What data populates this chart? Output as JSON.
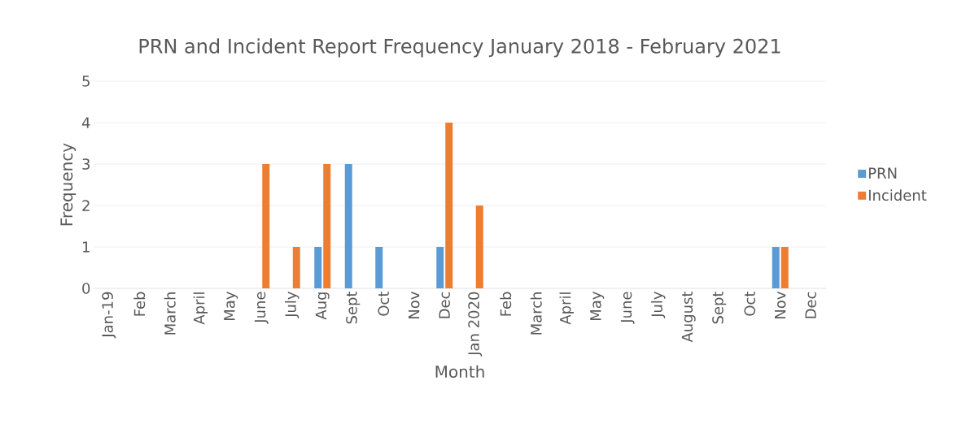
{
  "chart_data": {
    "type": "bar",
    "title": "PRN and Incident Report Frequency January 2018 - February 2021",
    "xlabel": "Month",
    "ylabel": "Frequency",
    "categories": [
      "Jan-19",
      "Feb",
      "March",
      "April",
      "May",
      "June",
      "July",
      "Aug",
      "Sept",
      "Oct",
      "Nov",
      "Dec",
      "Jan 2020",
      "Feb",
      "March",
      "April",
      "May",
      "June",
      "July",
      "August",
      "Sept",
      "Oct",
      "Nov",
      "Dec"
    ],
    "series": [
      {
        "name": "PRN",
        "color": "#5b9bd5",
        "values": [
          0,
          0,
          0,
          0,
          0,
          0,
          0,
          1,
          3,
          1,
          0,
          1,
          0,
          0,
          0,
          0,
          0,
          0,
          0,
          0,
          0,
          0,
          1,
          0
        ]
      },
      {
        "name": "Incident",
        "color": "#ed7d31",
        "values": [
          0,
          0,
          0,
          0,
          0,
          3,
          1,
          3,
          0,
          0,
          0,
          4,
          2,
          0,
          0,
          0,
          0,
          0,
          0,
          0,
          0,
          0,
          1,
          0
        ]
      }
    ],
    "ylim": [
      0,
      5
    ],
    "yticks": [
      0,
      1,
      2,
      3,
      4,
      5
    ],
    "grid": "y",
    "legend": "right"
  }
}
